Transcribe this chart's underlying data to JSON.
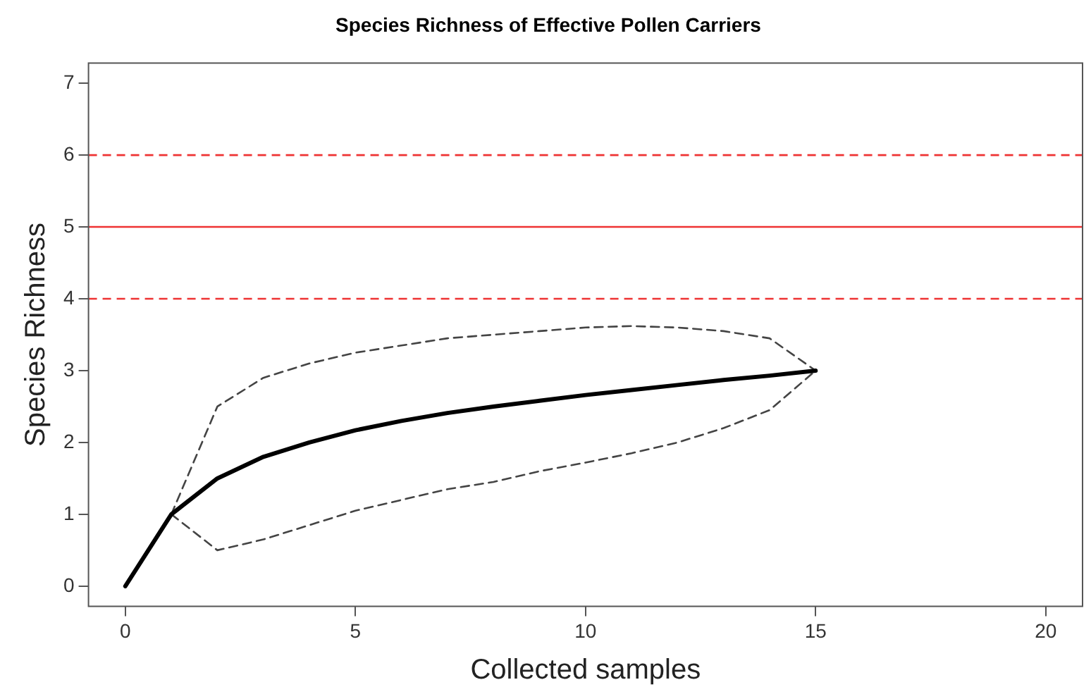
{
  "chart_data": {
    "type": "line",
    "title": "Species Richness of Effective Pollen Carriers",
    "xlabel": "Collected samples",
    "ylabel": "Species Richness",
    "xlim": [
      -0.8,
      20.8
    ],
    "xticks": [
      0,
      5,
      10,
      15,
      20
    ],
    "ylim": [
      -0.28,
      7.28
    ],
    "yticks": [
      0,
      1,
      2,
      3,
      4,
      5,
      6,
      7
    ],
    "grid": false,
    "legend": false,
    "marker": "none",
    "series": [
      {
        "color": "#000000",
        "line_style": "solid",
        "x": [
          0,
          1,
          2,
          3,
          4,
          5,
          6,
          7,
          8,
          9,
          10,
          11,
          12,
          13,
          14,
          15
        ],
        "values": [
          0,
          1,
          1.5,
          1.8,
          2.0,
          2.17,
          2.3,
          2.41,
          2.5,
          2.58,
          2.66,
          2.73,
          2.8,
          2.87,
          2.93,
          3.0
        ]
      },
      {
        "color": "#444444",
        "line_style": "dashed",
        "x": [
          1,
          2,
          3,
          4,
          5,
          6,
          7,
          8,
          9,
          10,
          11,
          12,
          13,
          14,
          15
        ],
        "values": [
          1,
          2.5,
          2.9,
          3.1,
          3.25,
          3.35,
          3.45,
          3.5,
          3.55,
          3.6,
          3.62,
          3.6,
          3.55,
          3.45,
          3.0
        ]
      },
      {
        "color": "#444444",
        "line_style": "dashed",
        "x": [
          1,
          2,
          3,
          4,
          5,
          6,
          7,
          8,
          9,
          10,
          11,
          12,
          13,
          14,
          15
        ],
        "values": [
          1,
          0.5,
          0.65,
          0.85,
          1.05,
          1.2,
          1.35,
          1.45,
          1.6,
          1.72,
          1.85,
          2.0,
          2.2,
          2.45,
          3.0
        ]
      }
    ],
    "ref_lines": [
      {
        "axis": "y",
        "value": 4,
        "color": "#ee3333",
        "line_style": "dashed"
      },
      {
        "axis": "y",
        "value": 5,
        "color": "#ee3333",
        "line_style": "solid"
      },
      {
        "axis": "y",
        "value": 6,
        "color": "#ee3333",
        "line_style": "dashed"
      }
    ]
  }
}
